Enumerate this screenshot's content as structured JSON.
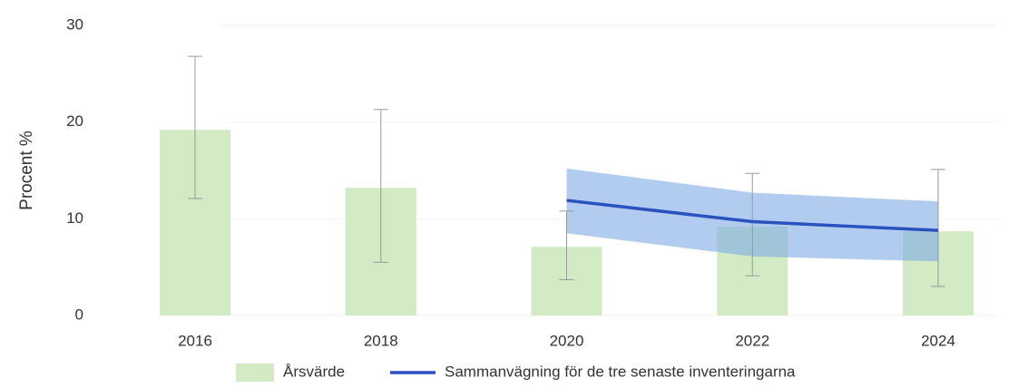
{
  "chart_data": {
    "type": "bar",
    "y_label": "Procent %",
    "categories": [
      "2016",
      "2018",
      "2020",
      "2022",
      "2024"
    ],
    "ylim": [
      0,
      30
    ],
    "yticks": [
      0,
      10,
      20,
      30
    ],
    "grid": true,
    "series": [
      {
        "name": "Årsvärde",
        "color": "#d2ebc4",
        "values": [
          19.2,
          13.2,
          7.1,
          9.2,
          8.7
        ],
        "ci_low": [
          12.1,
          5.5,
          3.7,
          4.1,
          3.0
        ],
        "ci_high": [
          26.8,
          21.3,
          10.8,
          14.7,
          15.1
        ]
      },
      {
        "name": "Sammanvägning för de tre senaste inventeringarna",
        "color": "#2a52be",
        "band_color": "#7eaae6",
        "values": [
          null,
          null,
          11.9,
          9.7,
          8.8
        ],
        "ci_low": [
          null,
          null,
          8.5,
          6.1,
          5.6
        ],
        "ci_high": [
          null,
          null,
          15.2,
          12.7,
          11.8
        ]
      }
    ]
  }
}
